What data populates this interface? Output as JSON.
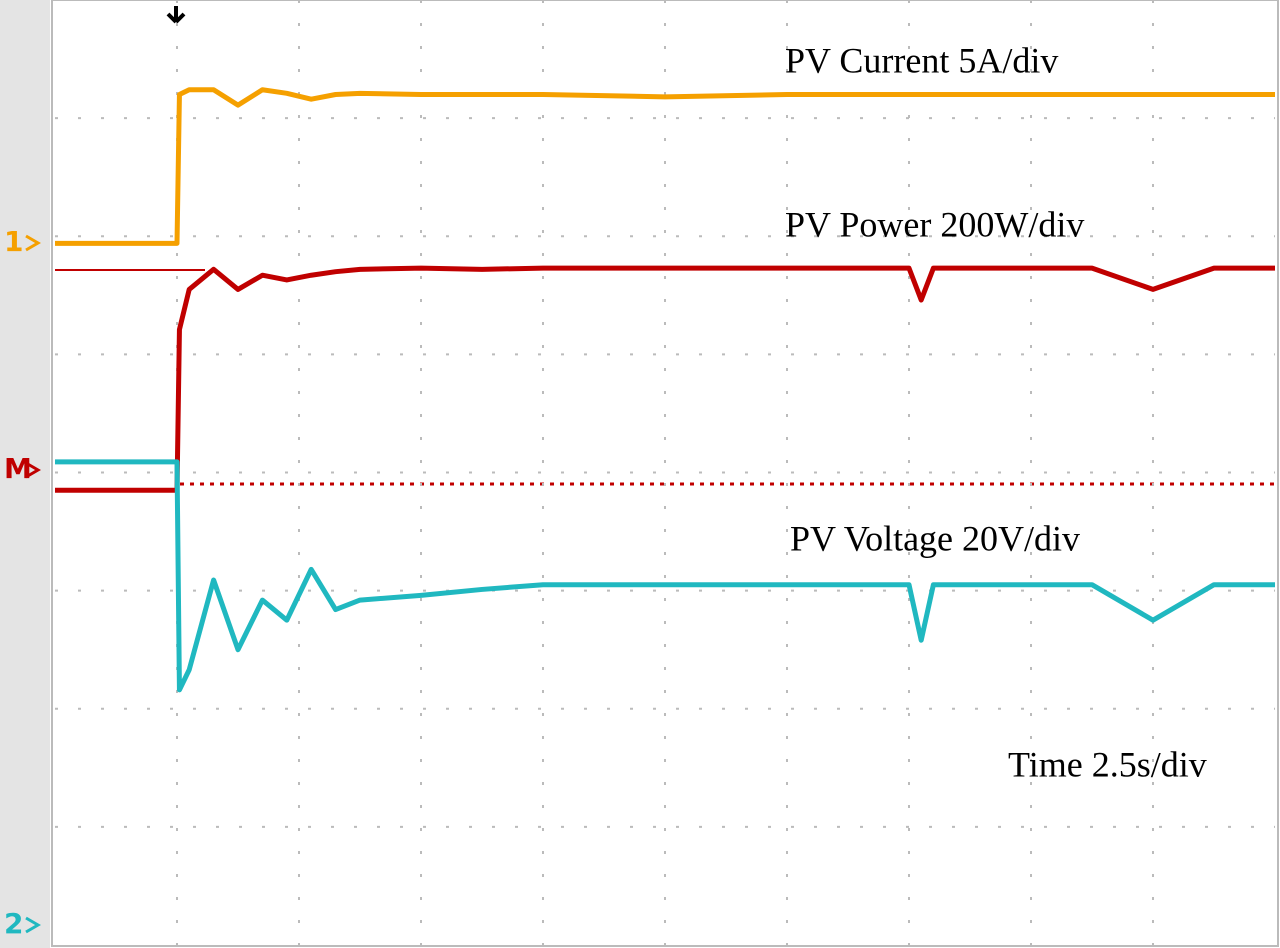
{
  "chart_data": {
    "type": "line",
    "x": [
      0,
      1.0,
      1.02,
      1.1,
      1.3,
      1.5,
      1.7,
      1.9,
      2.1,
      2.3,
      2.5,
      3,
      3.5,
      4,
      5,
      6,
      7,
      7.1,
      7.2,
      8,
      8.5,
      9,
      9.5,
      10
    ],
    "xlim": [
      0,
      10
    ],
    "ylim": [
      0,
      8
    ],
    "grid": true,
    "series": [
      {
        "name": "PV Current 5A/div",
        "color": "#f5a000",
        "marker": "1",
        "values": [
          5.94,
          5.94,
          7.2,
          7.24,
          7.24,
          7.11,
          7.24,
          7.21,
          7.16,
          7.2,
          7.21,
          7.2,
          7.2,
          7.2,
          7.18,
          7.2,
          7.2,
          7.2,
          7.2,
          7.2,
          7.2,
          7.2,
          7.2,
          7.2
        ]
      },
      {
        "name": "PV Power 200W/div",
        "color": "#c00000",
        "marker": "M",
        "values": [
          3.85,
          3.85,
          5.21,
          5.55,
          5.72,
          5.55,
          5.67,
          5.63,
          5.67,
          5.7,
          5.72,
          5.73,
          5.72,
          5.73,
          5.73,
          5.73,
          5.73,
          5.46,
          5.73,
          5.73,
          5.73,
          5.55,
          5.73,
          5.73
        ]
      },
      {
        "name": "PV Voltage 20V/div",
        "color": "#20b8c0",
        "marker": "2",
        "values": [
          4.09,
          4.09,
          2.16,
          2.33,
          3.09,
          2.5,
          2.92,
          2.75,
          3.18,
          2.84,
          2.92,
          2.96,
          3.01,
          3.05,
          3.05,
          3.05,
          3.05,
          2.58,
          3.05,
          3.05,
          3.05,
          2.75,
          3.05,
          3.05
        ]
      }
    ],
    "annotations": [
      "Time 2.5s/div"
    ]
  }
}
